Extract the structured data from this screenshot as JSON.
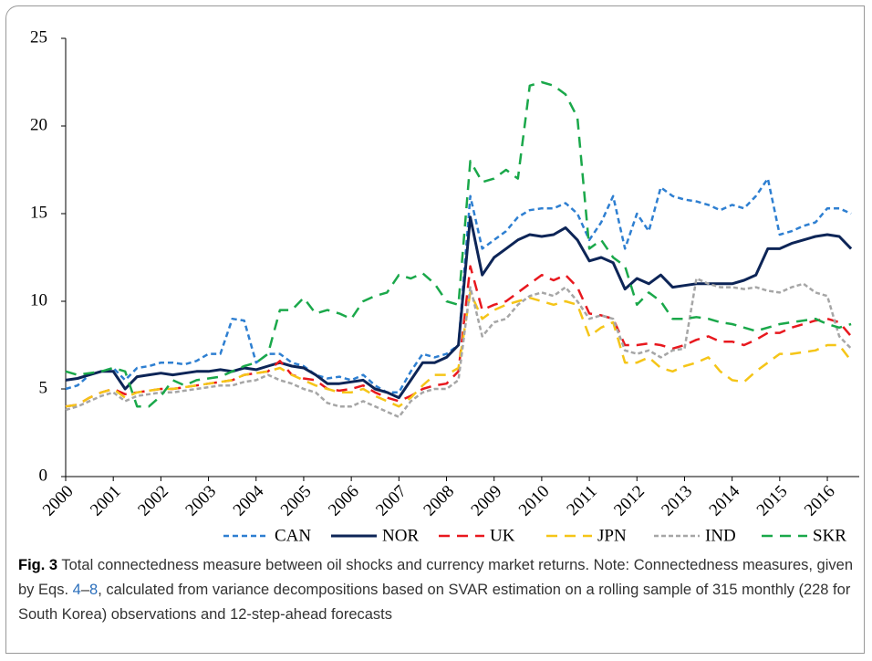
{
  "chart_data": {
    "type": "line",
    "x": [
      2000,
      2000.25,
      2000.5,
      2000.75,
      2001,
      2001.25,
      2001.5,
      2001.75,
      2002,
      2002.25,
      2002.5,
      2002.75,
      2003,
      2003.25,
      2003.5,
      2003.75,
      2004,
      2004.25,
      2004.5,
      2004.75,
      2005,
      2005.25,
      2005.5,
      2005.75,
      2006,
      2006.25,
      2006.5,
      2006.75,
      2007,
      2007.25,
      2007.5,
      2007.75,
      2008,
      2008.25,
      2008.5,
      2008.75,
      2009,
      2009.25,
      2009.5,
      2009.75,
      2010,
      2010.25,
      2010.5,
      2010.75,
      2011,
      2011.25,
      2011.5,
      2011.75,
      2012,
      2012.25,
      2012.5,
      2012.75,
      2013,
      2013.25,
      2013.5,
      2013.75,
      2014,
      2014.25,
      2014.5,
      2014.75,
      2015,
      2015.25,
      2015.5,
      2015.75,
      2016,
      2016.25,
      2016.5
    ],
    "xlim": [
      2000,
      2016.67
    ],
    "xticks": [
      2000,
      2001,
      2002,
      2003,
      2004,
      2005,
      2006,
      2007,
      2008,
      2009,
      2010,
      2011,
      2012,
      2013,
      2014,
      2015,
      2016
    ],
    "ylim": [
      0,
      25
    ],
    "yticks": [
      0,
      5,
      10,
      15,
      20,
      25
    ],
    "series": [
      {
        "name": "CAN",
        "color": "#2e7fd1",
        "values": [
          5.0,
          5.2,
          5.8,
          6.0,
          6.2,
          5.5,
          6.2,
          6.3,
          6.5,
          6.5,
          6.4,
          6.6,
          7.0,
          7.0,
          9.0,
          8.9,
          6.5,
          7.0,
          7.0,
          6.5,
          6.3,
          5.8,
          5.6,
          5.7,
          5.5,
          5.8,
          5.2,
          4.8,
          4.8,
          6.0,
          7.0,
          6.8,
          7.0,
          7.5,
          16.0,
          13.0,
          13.5,
          14.0,
          14.8,
          15.2,
          15.3,
          15.3,
          15.6,
          15.0,
          13.5,
          14.5,
          16.0,
          13.0,
          15.0,
          14.0,
          16.5,
          16.0,
          15.8,
          15.7,
          15.5,
          15.2,
          15.5,
          15.3,
          16.0,
          17.0,
          13.8,
          14.0,
          14.3,
          14.5,
          15.3,
          15.3,
          15.0
        ]
      },
      {
        "name": "NOR",
        "color": "#0d2557",
        "values": [
          5.5,
          5.6,
          5.8,
          6.0,
          6.0,
          5.0,
          5.7,
          5.8,
          5.9,
          5.8,
          5.9,
          6.0,
          6.0,
          6.1,
          6.0,
          6.2,
          6.1,
          6.3,
          6.5,
          6.3,
          6.2,
          5.8,
          5.3,
          5.3,
          5.4,
          5.5,
          5.0,
          4.8,
          4.5,
          5.5,
          6.5,
          6.5,
          6.8,
          7.5,
          14.8,
          11.5,
          12.5,
          13.0,
          13.5,
          13.8,
          13.7,
          13.8,
          14.2,
          13.5,
          12.3,
          12.5,
          12.2,
          10.7,
          11.3,
          11.0,
          11.5,
          10.8,
          10.9,
          11.0,
          11.0,
          11.0,
          11.0,
          11.2,
          11.5,
          13.0,
          13.0,
          13.3,
          13.5,
          13.7,
          13.8,
          13.7,
          13.0
        ]
      },
      {
        "name": "UK",
        "color": "#e8181e",
        "values": [
          4.0,
          4.1,
          4.5,
          4.8,
          5.0,
          4.7,
          4.8,
          4.9,
          5.0,
          5.0,
          5.1,
          5.2,
          5.3,
          5.4,
          5.5,
          5.8,
          5.9,
          6.0,
          6.6,
          5.8,
          5.6,
          5.5,
          5.0,
          4.9,
          5.0,
          5.2,
          4.8,
          4.5,
          4.3,
          4.6,
          5.0,
          5.2,
          5.3,
          6.0,
          12.0,
          9.5,
          9.8,
          10.0,
          10.5,
          11.0,
          11.5,
          11.2,
          11.5,
          10.8,
          9.3,
          9.2,
          9.0,
          7.5,
          7.5,
          7.6,
          7.5,
          7.3,
          7.5,
          7.8,
          8.0,
          7.7,
          7.7,
          7.5,
          7.8,
          8.2,
          8.2,
          8.5,
          8.7,
          8.9,
          9.0,
          8.8,
          8.0
        ]
      },
      {
        "name": "JPN",
        "color": "#f5c518",
        "values": [
          4.0,
          4.1,
          4.5,
          4.8,
          5.0,
          4.5,
          4.8,
          4.9,
          5.0,
          5.0,
          5.1,
          5.2,
          5.3,
          5.4,
          5.5,
          5.8,
          5.9,
          6.0,
          6.2,
          5.8,
          5.5,
          5.2,
          5.0,
          4.8,
          4.8,
          5.0,
          4.6,
          4.3,
          4.0,
          4.5,
          5.2,
          5.8,
          5.8,
          6.2,
          10.5,
          9.0,
          9.5,
          9.8,
          10.0,
          10.2,
          10.0,
          9.8,
          10.0,
          9.8,
          8.0,
          8.5,
          8.8,
          6.5,
          6.5,
          6.8,
          6.2,
          6.0,
          6.3,
          6.5,
          6.8,
          6.0,
          5.5,
          5.4,
          6.0,
          6.5,
          7.0,
          7.0,
          7.1,
          7.2,
          7.5,
          7.5,
          6.6
        ]
      },
      {
        "name": "IND",
        "color": "#a6a6a6",
        "values": [
          3.8,
          4.0,
          4.3,
          4.6,
          4.8,
          4.3,
          4.6,
          4.7,
          4.8,
          4.8,
          4.9,
          5.0,
          5.1,
          5.2,
          5.2,
          5.4,
          5.5,
          5.8,
          5.5,
          5.3,
          5.0,
          4.8,
          4.2,
          4.0,
          4.0,
          4.3,
          4.0,
          3.7,
          3.4,
          4.3,
          4.8,
          5.0,
          5.0,
          5.5,
          10.8,
          8.0,
          8.8,
          9.0,
          9.8,
          10.3,
          10.5,
          10.3,
          10.8,
          10.0,
          9.0,
          9.2,
          9.0,
          7.2,
          7.0,
          7.2,
          6.8,
          7.2,
          7.3,
          11.3,
          11.0,
          10.8,
          10.8,
          10.7,
          10.8,
          10.6,
          10.5,
          10.8,
          11.0,
          10.5,
          10.3,
          8.0,
          7.3
        ]
      },
      {
        "name": "SKR",
        "color": "#1aa84a",
        "values": [
          6.0,
          5.8,
          5.9,
          6.0,
          6.2,
          6.0,
          4.0,
          4.0,
          4.6,
          5.5,
          5.2,
          5.5,
          5.6,
          5.7,
          6.0,
          6.3,
          6.5,
          7.0,
          9.5,
          9.5,
          10.2,
          9.3,
          9.5,
          9.3,
          9.0,
          10.0,
          10.3,
          10.5,
          11.5,
          11.3,
          11.6,
          11.0,
          10.0,
          9.8,
          18.0,
          16.8,
          17.0,
          17.5,
          17.0,
          22.3,
          22.5,
          22.3,
          21.8,
          20.5,
          13.0,
          13.5,
          12.5,
          12.0,
          9.8,
          10.5,
          10.0,
          9.0,
          9.0,
          9.1,
          9.0,
          8.8,
          8.7,
          8.5,
          8.3,
          8.5,
          8.7,
          8.8,
          8.9,
          9.0,
          8.7,
          8.5,
          8.7
        ]
      }
    ],
    "legend": "bottom"
  },
  "caption": {
    "label": "Fig. 3",
    "text_before": " Total connectedness measure between oil shocks and currency market returns. Note: Connectedness measures, given by Eqs. ",
    "ref_start": "4",
    "ref_sep": "–",
    "ref_end": "8",
    "text_after": ", calculated from variance decompositions based on SVAR estimation on a rolling sample of 315 monthly (228 for South Korea) observations and 12-step-ahead forecasts"
  }
}
